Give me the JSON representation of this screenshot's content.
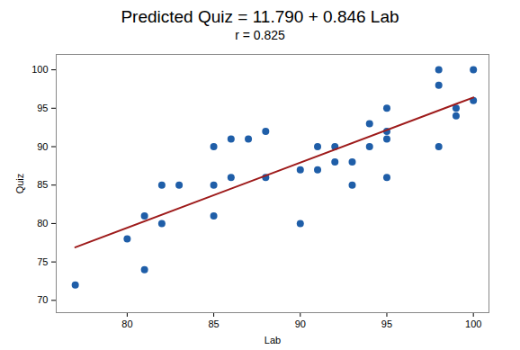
{
  "chart_data": {
    "type": "scatter",
    "title": "Predicted Quiz = 11.790 + 0.846 Lab",
    "subtitle": "r = 0.825",
    "x_label": "Lab",
    "y_label": "Quiz",
    "xlim": [
      75.9,
      100.9
    ],
    "xticks": [
      80,
      85,
      90,
      95,
      100
    ],
    "ylim": [
      68.4,
      102
    ],
    "yticks": [
      70,
      75,
      80,
      85,
      90,
      95,
      100
    ],
    "grid": false,
    "series": [
      {
        "type": "scatter",
        "color": "#1f5ea8",
        "marker": "circle",
        "x": [
          77,
          80,
          81,
          81,
          82,
          82,
          83,
          85,
          85,
          85,
          86,
          86,
          87,
          88,
          88,
          90,
          90,
          91,
          91,
          92,
          92,
          93,
          93,
          94,
          94,
          95,
          95,
          95,
          95,
          98,
          98,
          98,
          99,
          99,
          100,
          100
        ],
        "values": [
          72,
          78,
          81,
          74,
          85,
          80,
          85,
          90,
          85,
          81,
          91,
          86,
          91,
          92,
          86,
          87,
          80,
          90,
          87,
          90,
          88,
          88,
          85,
          93,
          90,
          95,
          92,
          91,
          86,
          100,
          98,
          90,
          95,
          94,
          100,
          96
        ]
      },
      {
        "type": "line",
        "color": "#9e1b1b",
        "line_style": "solid",
        "x": [
          77,
          100
        ],
        "values": [
          76.9,
          96.4
        ]
      }
    ]
  }
}
